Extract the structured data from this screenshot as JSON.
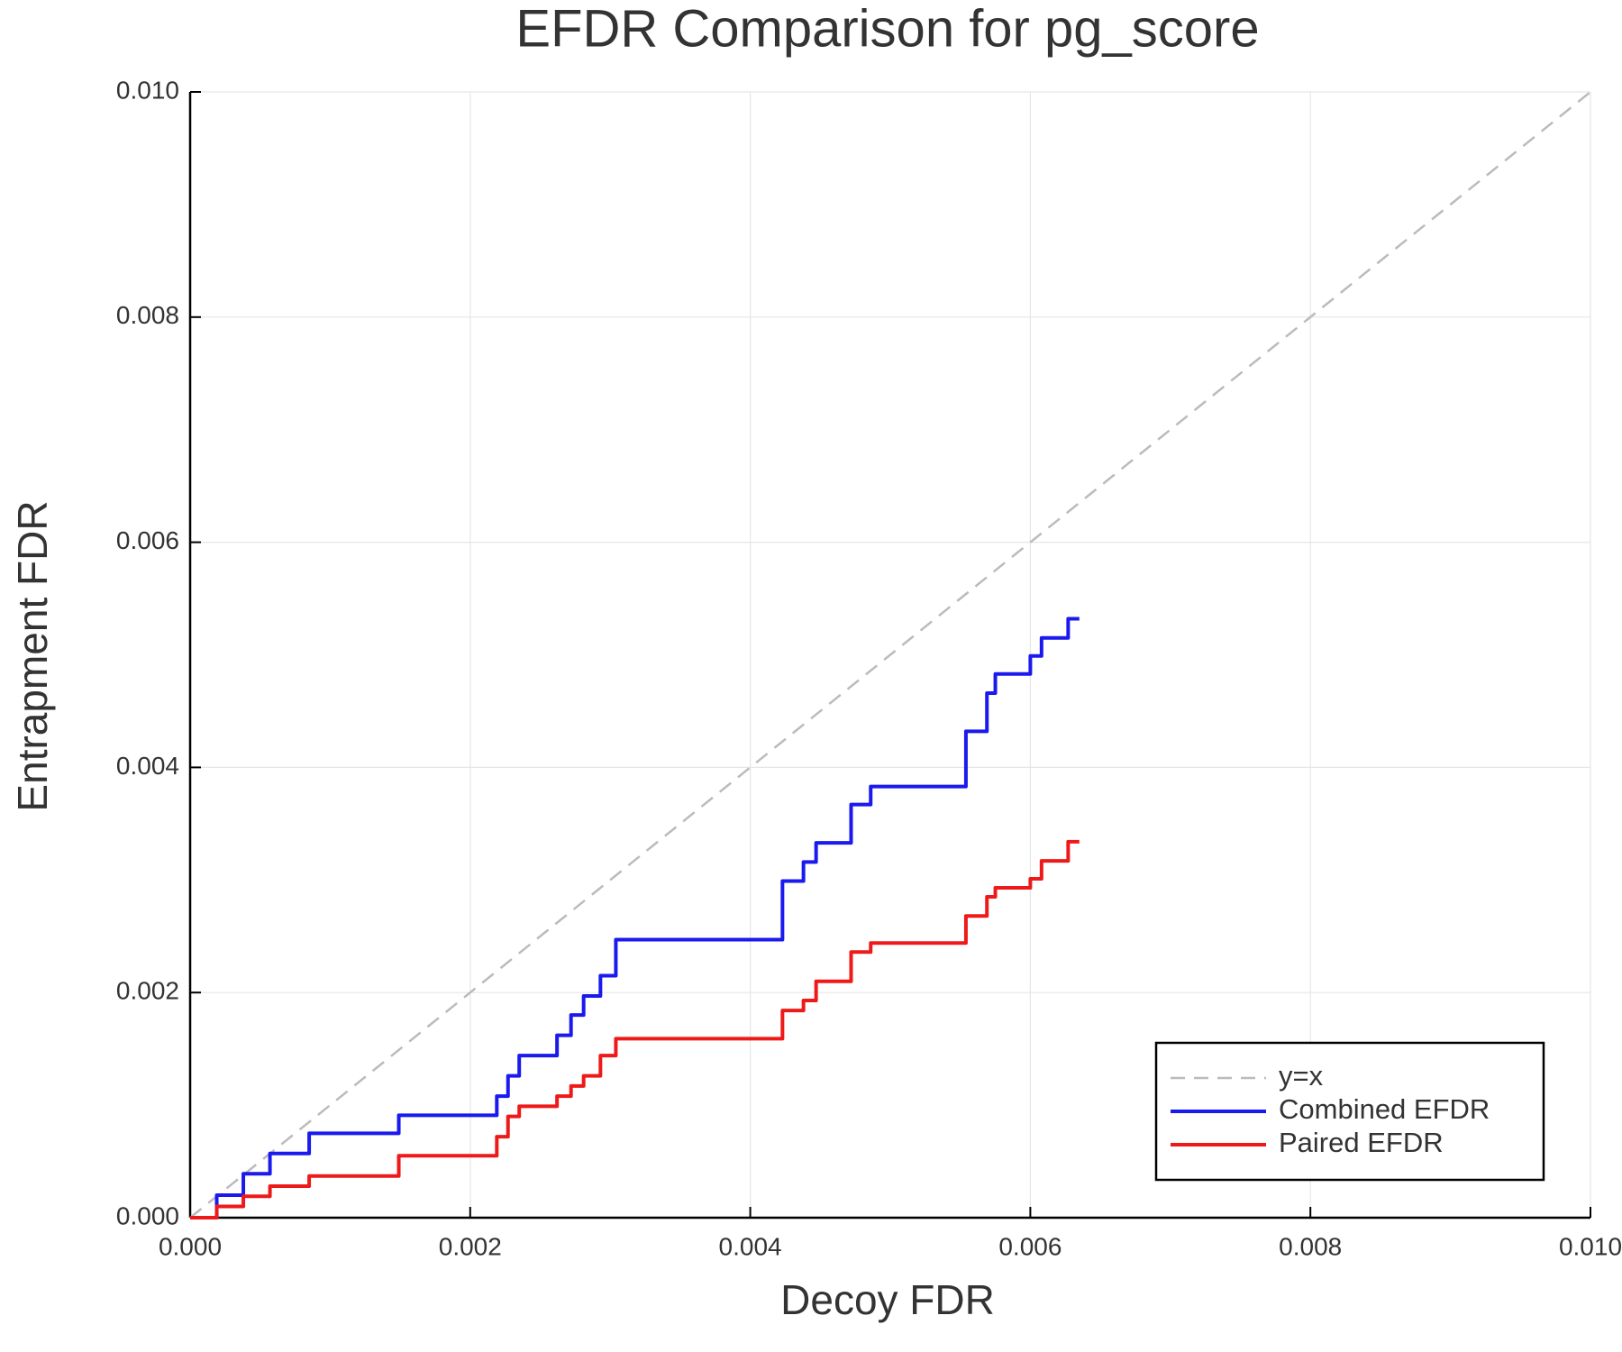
{
  "chart_data": {
    "type": "line",
    "title": "EFDR Comparison for pg_score",
    "x_label": "Decoy FDR",
    "y_label": "Entrapment FDR",
    "xlim": [
      0,
      0.01
    ],
    "ylim": [
      0,
      0.01
    ],
    "xticks": [
      {
        "value": 0,
        "label": "0.000"
      },
      0.002,
      0.004,
      0.006,
      0.008,
      {
        "value": 0.01,
        "label": "0.010"
      }
    ],
    "yticks": [
      {
        "value": 0,
        "label": "0.000"
      },
      0.002,
      0.004,
      0.006,
      0.008,
      {
        "value": 0.01,
        "label": "0.010"
      }
    ],
    "grid": true,
    "legend": "lower right",
    "series": [
      {
        "name": "y=x",
        "color": "#bbbbbb",
        "dashed": true,
        "x": [
          0,
          0.01
        ],
        "values": [
          0,
          0.01
        ]
      },
      {
        "name": "Combined EFDR",
        "color": "#1a1aee",
        "x": [
          0,
          0.00019,
          0.00019,
          0.00038,
          0.00038,
          0.00057,
          0.00057,
          0.00085,
          0.00085,
          0.00149,
          0.00149,
          0.00219,
          0.00219,
          0.00227,
          0.00227,
          0.00235,
          0.00235,
          0.00262,
          0.00262,
          0.00272,
          0.00272,
          0.00281,
          0.00281,
          0.00293,
          0.00293,
          0.00304,
          0.00304,
          0.00423,
          0.00423,
          0.00438,
          0.00438,
          0.00447,
          0.00447,
          0.00472,
          0.00472,
          0.00486,
          0.00486,
          0.00554,
          0.00554,
          0.00569,
          0.00569,
          0.00575,
          0.00575,
          0.006,
          0.006,
          0.00608,
          0.00608,
          0.00627,
          0.00627,
          0.00635
        ],
        "values": [
          0,
          0,
          0.0002,
          0.0002,
          0.00039,
          0.00039,
          0.00057,
          0.00057,
          0.00075,
          0.00075,
          0.00091,
          0.00091,
          0.00108,
          0.00108,
          0.00126,
          0.00126,
          0.00144,
          0.00144,
          0.00162,
          0.00162,
          0.0018,
          0.0018,
          0.00197,
          0.00197,
          0.00215,
          0.00215,
          0.00247,
          0.00247,
          0.00299,
          0.00299,
          0.00316,
          0.00316,
          0.00333,
          0.00333,
          0.00367,
          0.00367,
          0.00383,
          0.00383,
          0.00432,
          0.00432,
          0.00466,
          0.00466,
          0.00483,
          0.00483,
          0.00499,
          0.00499,
          0.00515,
          0.00515,
          0.00532,
          0.00532
        ]
      },
      {
        "name": "Paired EFDR",
        "color": "#ee1a1a",
        "x": [
          0,
          0.00019,
          0.00019,
          0.00038,
          0.00038,
          0.00057,
          0.00057,
          0.00085,
          0.00085,
          0.00149,
          0.00149,
          0.00219,
          0.00219,
          0.00227,
          0.00227,
          0.00235,
          0.00235,
          0.00262,
          0.00262,
          0.00272,
          0.00272,
          0.00281,
          0.00281,
          0.00293,
          0.00293,
          0.00304,
          0.00304,
          0.00423,
          0.00423,
          0.00438,
          0.00438,
          0.00447,
          0.00447,
          0.00472,
          0.00472,
          0.00486,
          0.00486,
          0.00554,
          0.00554,
          0.00569,
          0.00569,
          0.00575,
          0.00575,
          0.006,
          0.006,
          0.00608,
          0.00608,
          0.00627,
          0.00627,
          0.00635
        ],
        "values": [
          0,
          0,
          0.0001,
          0.0001,
          0.00019,
          0.00019,
          0.00028,
          0.00028,
          0.00037,
          0.00037,
          0.00055,
          0.00055,
          0.00072,
          0.00072,
          0.0009,
          0.0009,
          0.00099,
          0.00099,
          0.00108,
          0.00108,
          0.00117,
          0.00117,
          0.00126,
          0.00126,
          0.00144,
          0.00144,
          0.00159,
          0.00159,
          0.00184,
          0.00184,
          0.00193,
          0.00193,
          0.0021,
          0.0021,
          0.00236,
          0.00236,
          0.00244,
          0.00244,
          0.00268,
          0.00268,
          0.00285,
          0.00285,
          0.00293,
          0.00293,
          0.00301,
          0.00301,
          0.00317,
          0.00317,
          0.00334,
          0.00334
        ]
      }
    ]
  }
}
